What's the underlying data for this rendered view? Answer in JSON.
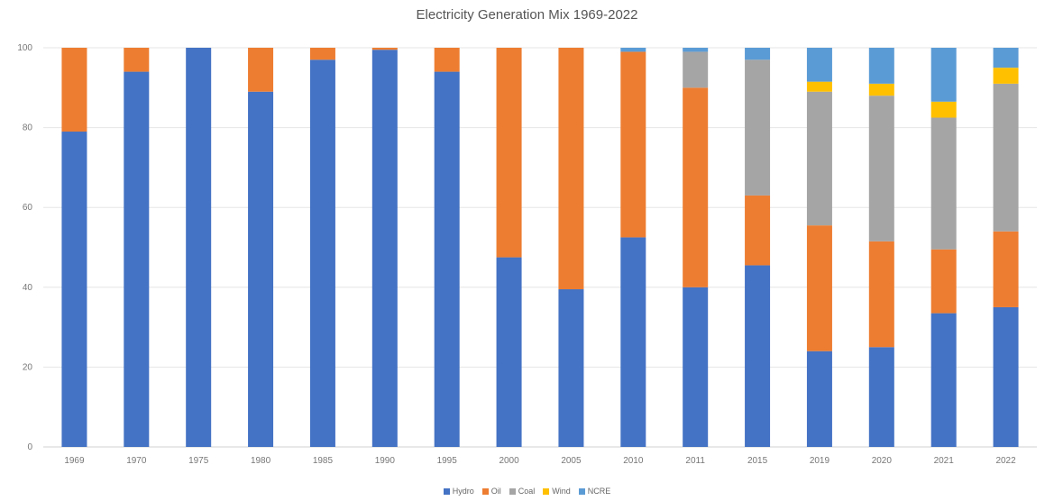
{
  "chart_data": {
    "type": "bar",
    "stacked": true,
    "title": "Electricity Generation Mix 1969-2022",
    "xlabel": "",
    "ylabel": "",
    "ylim": [
      0,
      100
    ],
    "yticks": [
      0,
      20,
      40,
      60,
      80,
      100
    ],
    "grid": true,
    "legend_position": "bottom",
    "categories": [
      "1969",
      "1970",
      "1975",
      "1980",
      "1985",
      "1990",
      "1995",
      "2000",
      "2005",
      "2010",
      "2011",
      "2015",
      "2019",
      "2020",
      "2021",
      "2022"
    ],
    "series": [
      {
        "name": "Hydro",
        "color": "#4472C4",
        "values": [
          79,
          94,
          100,
          89,
          97,
          99.5,
          94,
          47.5,
          39.5,
          52.5,
          40,
          45.5,
          24,
          25,
          33.5,
          35
        ]
      },
      {
        "name": "Oil",
        "color": "#ED7D31",
        "values": [
          21,
          6,
          0,
          11,
          3,
          0.5,
          6,
          52.5,
          60.5,
          46.5,
          50,
          17.5,
          31.5,
          26.5,
          16,
          19
        ]
      },
      {
        "name": "Coal",
        "color": "#A5A5A5",
        "values": [
          0,
          0,
          0,
          0,
          0,
          0,
          0,
          0,
          0,
          0,
          9,
          34,
          33.5,
          36.5,
          33,
          37
        ]
      },
      {
        "name": "Wind",
        "color": "#FFC000",
        "values": [
          0,
          0,
          0,
          0,
          0,
          0,
          0,
          0,
          0,
          0,
          0,
          0,
          2.5,
          3,
          4,
          4
        ]
      },
      {
        "name": "NCRE",
        "color": "#5B9BD5",
        "values": [
          0,
          0,
          0,
          0,
          0,
          0,
          0,
          0,
          0,
          1,
          1,
          3,
          8.5,
          9,
          13.5,
          5
        ]
      }
    ]
  }
}
